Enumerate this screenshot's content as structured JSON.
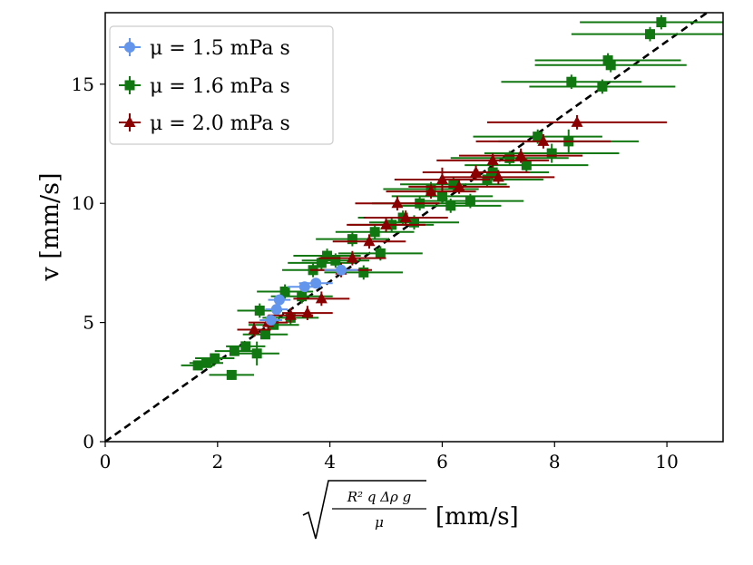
{
  "chart_data": {
    "type": "scatter",
    "title": "",
    "xlabel": "[mm/s]",
    "xlabel_math": {
      "radical": "√",
      "numerator": "R² q Δρ g",
      "denominator": "μ"
    },
    "ylabel": "v [mm/s]",
    "xlim": [
      0,
      11
    ],
    "ylim": [
      0,
      18
    ],
    "xticks": [
      "0",
      "2",
      "4",
      "6",
      "8",
      "10"
    ],
    "yticks": [
      "0",
      "5",
      "10",
      "15"
    ],
    "xtick_values": [
      0,
      2,
      4,
      6,
      8,
      10
    ],
    "ytick_values": [
      0,
      5,
      10,
      15
    ],
    "legend_position": "top-left",
    "reference_line": {
      "style": "dashed",
      "color": "#000000",
      "slope": 1.68,
      "intercept": 0
    },
    "series": [
      {
        "name": "μ = 1.5 mPa s",
        "marker": "circle",
        "color": "#6495ED",
        "points": [
          [
            2.95,
            5.1,
            0.2,
            0.2
          ],
          [
            3.05,
            5.55,
            0.2,
            0.2
          ],
          [
            3.1,
            5.95,
            0.2,
            0.2
          ],
          [
            3.55,
            6.5,
            0.3,
            0.2
          ],
          [
            3.75,
            6.65,
            0.3,
            0.2
          ],
          [
            4.2,
            7.2,
            0.3,
            0.2
          ]
        ]
      },
      {
        "name": "μ = 1.6 mPa s",
        "marker": "square",
        "color": "#117711",
        "points": [
          [
            1.65,
            3.2,
            0.3,
            0.2
          ],
          [
            1.8,
            3.3,
            0.3,
            0.2
          ],
          [
            1.95,
            3.5,
            0.35,
            0.2
          ],
          [
            2.25,
            2.8,
            0.4,
            0.2
          ],
          [
            2.3,
            3.8,
            0.35,
            0.2
          ],
          [
            2.5,
            4.0,
            0.35,
            0.2
          ],
          [
            2.7,
            3.7,
            0.4,
            0.5
          ],
          [
            2.75,
            5.5,
            0.4,
            0.3
          ],
          [
            2.85,
            4.5,
            0.4,
            0.2
          ],
          [
            3.0,
            4.9,
            0.45,
            0.2
          ],
          [
            3.2,
            6.3,
            0.5,
            0.3
          ],
          [
            3.3,
            5.2,
            0.5,
            0.3
          ],
          [
            3.5,
            6.1,
            0.55,
            0.3
          ],
          [
            3.7,
            7.2,
            0.55,
            0.3
          ],
          [
            3.85,
            7.5,
            0.6,
            0.3
          ],
          [
            3.95,
            7.8,
            0.6,
            0.3
          ],
          [
            4.1,
            7.6,
            0.6,
            0.3
          ],
          [
            4.4,
            8.5,
            0.65,
            0.3
          ],
          [
            4.6,
            7.1,
            0.7,
            0.3
          ],
          [
            4.8,
            8.8,
            0.7,
            0.3
          ],
          [
            4.9,
            7.9,
            0.75,
            0.3
          ],
          [
            5.1,
            9.1,
            0.75,
            0.3
          ],
          [
            5.3,
            9.4,
            0.8,
            0.3
          ],
          [
            5.5,
            9.2,
            0.8,
            0.3
          ],
          [
            5.6,
            10.0,
            0.85,
            0.3
          ],
          [
            5.8,
            10.6,
            0.85,
            0.3
          ],
          [
            6.0,
            10.3,
            0.9,
            0.3
          ],
          [
            6.15,
            9.9,
            0.9,
            0.3
          ],
          [
            6.2,
            10.8,
            0.95,
            0.3
          ],
          [
            6.5,
            10.1,
            0.95,
            0.3
          ],
          [
            6.8,
            11.0,
            1.0,
            0.3
          ],
          [
            6.9,
            11.3,
            1.0,
            0.3
          ],
          [
            7.2,
            11.9,
            1.05,
            0.3
          ],
          [
            7.5,
            11.6,
            1.1,
            0.3
          ],
          [
            7.7,
            12.8,
            1.15,
            0.3
          ],
          [
            7.95,
            12.1,
            1.2,
            0.4
          ],
          [
            8.25,
            12.6,
            1.25,
            0.5
          ],
          [
            8.3,
            15.1,
            1.25,
            0.3
          ],
          [
            8.85,
            14.9,
            1.3,
            0.3
          ],
          [
            8.95,
            16.0,
            1.3,
            0.3
          ],
          [
            9.0,
            15.8,
            1.35,
            0.3
          ],
          [
            9.7,
            17.1,
            1.4,
            0.3
          ],
          [
            9.9,
            17.6,
            1.45,
            0.3
          ]
        ]
      },
      {
        "name": "μ = 2.0 mPa s",
        "marker": "triangle",
        "color": "#8B0000",
        "points": [
          [
            2.65,
            4.7,
            0.3,
            0.3
          ],
          [
            2.9,
            5.0,
            0.35,
            0.3
          ],
          [
            3.3,
            5.3,
            0.4,
            0.3
          ],
          [
            3.6,
            5.4,
            0.45,
            0.3
          ],
          [
            3.85,
            6.0,
            0.5,
            0.3
          ],
          [
            4.2,
            7.2,
            0.55,
            0.3
          ],
          [
            4.4,
            7.7,
            0.6,
            0.3
          ],
          [
            4.7,
            8.4,
            0.65,
            0.3
          ],
          [
            5.0,
            9.1,
            0.7,
            0.3
          ],
          [
            5.2,
            10.0,
            0.75,
            0.3
          ],
          [
            5.35,
            9.4,
            0.75,
            0.3
          ],
          [
            5.8,
            10.5,
            0.8,
            0.3
          ],
          [
            6.0,
            11.0,
            0.85,
            0.5
          ],
          [
            6.3,
            10.7,
            0.9,
            0.3
          ],
          [
            6.6,
            11.3,
            0.95,
            0.3
          ],
          [
            6.9,
            11.8,
            1.0,
            0.3
          ],
          [
            7.0,
            11.1,
            1.0,
            0.3
          ],
          [
            7.4,
            12.0,
            1.1,
            0.3
          ],
          [
            7.8,
            12.6,
            1.2,
            0.3
          ],
          [
            8.4,
            13.4,
            1.6,
            0.3
          ]
        ]
      }
    ]
  }
}
